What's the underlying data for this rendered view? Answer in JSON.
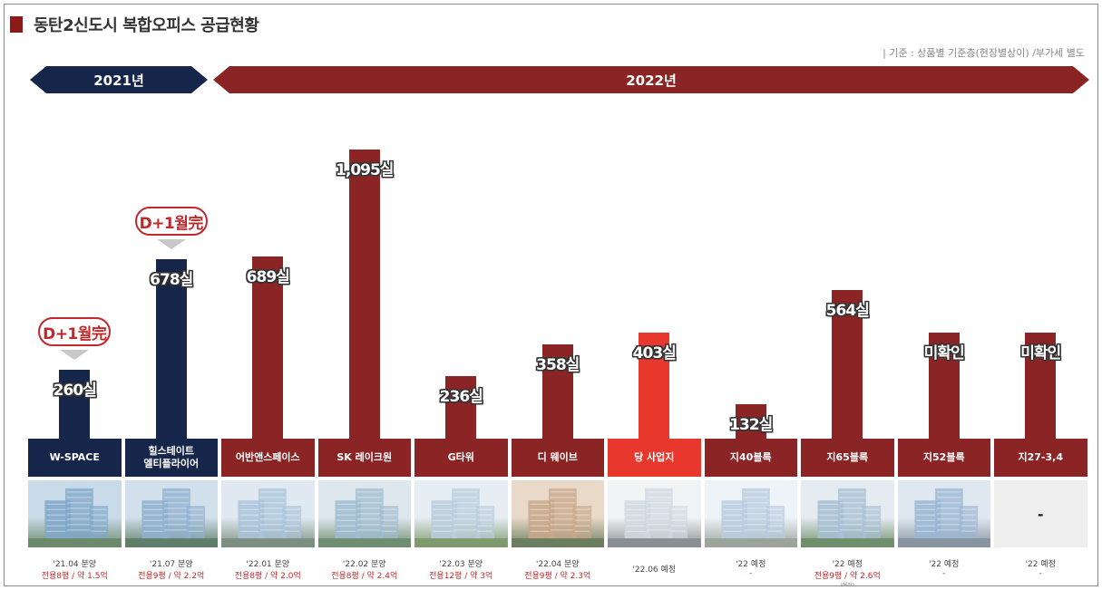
{
  "header": {
    "title": "동탄2신도시 복합오피스 공급현황",
    "note": "| 기준 : 상품별 기준층(현장별상이) /부가세 별도"
  },
  "years": [
    {
      "label": "2021년"
    },
    {
      "label": "2022년"
    }
  ],
  "colors": {
    "navy": "#15264a",
    "maroon": "#8b2525",
    "highlight": "#e8372d",
    "accent_red": "#c0282b"
  },
  "badge_text": "D+1월完",
  "chart_data": {
    "type": "bar",
    "categories": [
      "W-SPACE",
      "힐스테이트\n엘티플라이어",
      "어반앤스페이스",
      "SK 레이크원",
      "G타워",
      "디 웨이브",
      "당 사업지",
      "지40블록",
      "지65블록",
      "지52블록",
      "지27-3,4"
    ],
    "values": [
      260,
      678,
      689,
      1095,
      236,
      358,
      403,
      132,
      564,
      null,
      null
    ],
    "value_labels": [
      "260실",
      "678실",
      "689실",
      "1,095실",
      "236실",
      "358실",
      "403실",
      "132실",
      "564실",
      "미확인",
      "미확인"
    ],
    "series_colors": [
      "#15264a",
      "#15264a",
      "#8b2525",
      "#8b2525",
      "#8b2525",
      "#8b2525",
      "#e8372d",
      "#8b2525",
      "#8b2525",
      "#8b2525",
      "#8b2525"
    ],
    "badges": [
      true,
      true,
      false,
      false,
      false,
      false,
      false,
      false,
      false,
      false,
      false
    ],
    "schedule": [
      "'21.04 분양",
      "'21.07 분양",
      "'22.01 분양",
      "'22.02 분양",
      "'22.03 분양",
      "'22.04 분양",
      "'22.06 예정",
      "'22 예정",
      "'22 예정",
      "'22 예정",
      "'22 예정"
    ],
    "details": [
      "전용8평 / 약 1.5억",
      "전용9평 / 약 2.2억",
      "전용8평 / 약 2.0억",
      "전용8평 / 약 2.4억",
      "전용12평 / 약 3억",
      "전용9평 / 약 2.3억",
      "",
      "-",
      "전용9평 / 약 2.6억",
      "-",
      "-"
    ],
    "sub_notes": [
      "",
      "",
      "",
      "",
      "",
      "",
      "",
      "",
      "(예정)",
      "",
      ""
    ],
    "photo_placeholder": "-",
    "ylim": [
      0,
      1095
    ]
  }
}
